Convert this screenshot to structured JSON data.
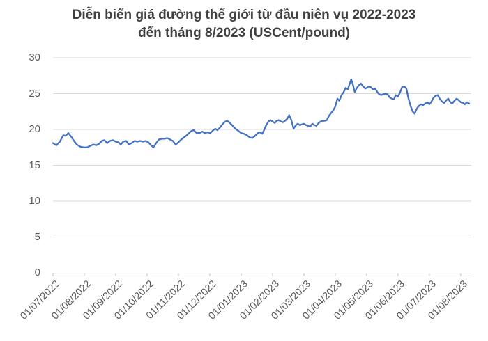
{
  "title": {
    "line1": "Diễn biến giá đường thế giới từ đầu niên vụ 2022-2023",
    "line2": "đến tháng 8/2023 (USCent/pound)"
  },
  "chart_data": {
    "type": "line",
    "title": "Diễn biến giá đường thế giới từ đầu niên vụ 2022-2023 đến tháng 8/2023 (USCent/pound)",
    "xlabel": "",
    "ylabel": "",
    "ylim": [
      0,
      30
    ],
    "yticks": [
      0,
      5,
      10,
      15,
      20,
      25,
      30
    ],
    "x_tick_labels": [
      "01/07/2022",
      "01/08/2022",
      "01/09/2022",
      "01/10/2022",
      "01/11/2022",
      "01/12/2022",
      "01/01/2023",
      "01/02/2023",
      "01/03/2023",
      "01/04/2023",
      "01/05/2023",
      "01/06/2023",
      "01/07/2023",
      "01/08/2023"
    ],
    "x_unit": "months since 01/07/2022",
    "x_range": [
      0,
      13.27
    ],
    "grid": "horizontal",
    "legend": "none",
    "colors": {
      "line": "#4472C4",
      "title": "#404040",
      "axis_labels": "#595959",
      "gridline": "#D9D9D9",
      "axis_line": "#BFBFBF"
    },
    "series": [
      {
        "points": [
          [
            0,
            18.1
          ],
          [
            0.11,
            17.8
          ],
          [
            0.22,
            18.3
          ],
          [
            0.33,
            19.2
          ],
          [
            0.4,
            19.1
          ],
          [
            0.49,
            19.5
          ],
          [
            0.58,
            19.0
          ],
          [
            0.67,
            18.4
          ],
          [
            0.76,
            17.9
          ],
          [
            0.87,
            17.6
          ],
          [
            0.98,
            17.5
          ],
          [
            1.09,
            17.5
          ],
          [
            1.18,
            17.7
          ],
          [
            1.29,
            17.9
          ],
          [
            1.38,
            17.8
          ],
          [
            1.47,
            18.0
          ],
          [
            1.56,
            18.4
          ],
          [
            1.64,
            18.5
          ],
          [
            1.73,
            18.1
          ],
          [
            1.82,
            18.4
          ],
          [
            1.91,
            18.5
          ],
          [
            2.0,
            18.3
          ],
          [
            2.09,
            18.2
          ],
          [
            2.16,
            17.9
          ],
          [
            2.24,
            18.3
          ],
          [
            2.33,
            18.4
          ],
          [
            2.42,
            17.9
          ],
          [
            2.51,
            18.1
          ],
          [
            2.6,
            18.4
          ],
          [
            2.69,
            18.3
          ],
          [
            2.78,
            18.4
          ],
          [
            2.87,
            18.3
          ],
          [
            2.96,
            18.4
          ],
          [
            3.04,
            18.2
          ],
          [
            3.13,
            17.8
          ],
          [
            3.2,
            17.5
          ],
          [
            3.29,
            18.1
          ],
          [
            3.38,
            18.6
          ],
          [
            3.47,
            18.7
          ],
          [
            3.56,
            18.7
          ],
          [
            3.64,
            18.8
          ],
          [
            3.73,
            18.6
          ],
          [
            3.82,
            18.4
          ],
          [
            3.91,
            17.9
          ],
          [
            4.0,
            18.2
          ],
          [
            4.09,
            18.6
          ],
          [
            4.18,
            18.9
          ],
          [
            4.27,
            19.2
          ],
          [
            4.36,
            19.6
          ],
          [
            4.42,
            19.8
          ],
          [
            4.49,
            19.9
          ],
          [
            4.58,
            19.5
          ],
          [
            4.67,
            19.5
          ],
          [
            4.76,
            19.7
          ],
          [
            4.84,
            19.5
          ],
          [
            4.93,
            19.6
          ],
          [
            5.02,
            19.5
          ],
          [
            5.11,
            19.9
          ],
          [
            5.18,
            20.1
          ],
          [
            5.24,
            19.9
          ],
          [
            5.33,
            20.3
          ],
          [
            5.42,
            20.8
          ],
          [
            5.49,
            21.1
          ],
          [
            5.56,
            21.2
          ],
          [
            5.64,
            20.9
          ],
          [
            5.73,
            20.5
          ],
          [
            5.82,
            20.1
          ],
          [
            5.91,
            19.8
          ],
          [
            6.0,
            19.5
          ],
          [
            6.09,
            19.4
          ],
          [
            6.18,
            19.2
          ],
          [
            6.27,
            18.9
          ],
          [
            6.36,
            18.8
          ],
          [
            6.44,
            19.1
          ],
          [
            6.53,
            19.5
          ],
          [
            6.6,
            19.6
          ],
          [
            6.67,
            19.4
          ],
          [
            6.73,
            19.9
          ],
          [
            6.8,
            20.6
          ],
          [
            6.87,
            21.1
          ],
          [
            6.93,
            21.3
          ],
          [
            7.0,
            21.1
          ],
          [
            7.07,
            20.9
          ],
          [
            7.13,
            21.2
          ],
          [
            7.2,
            21.3
          ],
          [
            7.27,
            21.1
          ],
          [
            7.33,
            21.0
          ],
          [
            7.4,
            21.2
          ],
          [
            7.47,
            21.5
          ],
          [
            7.53,
            22.0
          ],
          [
            7.6,
            21.3
          ],
          [
            7.67,
            20.1
          ],
          [
            7.73,
            20.5
          ],
          [
            7.8,
            20.8
          ],
          [
            7.87,
            20.6
          ],
          [
            7.93,
            20.7
          ],
          [
            8.0,
            20.8
          ],
          [
            8.07,
            20.6
          ],
          [
            8.13,
            20.5
          ],
          [
            8.2,
            20.4
          ],
          [
            8.27,
            20.8
          ],
          [
            8.33,
            20.6
          ],
          [
            8.4,
            20.5
          ],
          [
            8.47,
            20.9
          ],
          [
            8.53,
            21.1
          ],
          [
            8.6,
            21.2
          ],
          [
            8.67,
            21.2
          ],
          [
            8.73,
            21.3
          ],
          [
            8.8,
            21.9
          ],
          [
            8.87,
            22.3
          ],
          [
            8.93,
            22.6
          ],
          [
            9.0,
            23.2
          ],
          [
            9.07,
            24.3
          ],
          [
            9.13,
            24.0
          ],
          [
            9.2,
            24.8
          ],
          [
            9.27,
            25.2
          ],
          [
            9.33,
            25.8
          ],
          [
            9.4,
            25.6
          ],
          [
            9.47,
            26.5
          ],
          [
            9.51,
            27.0
          ],
          [
            9.56,
            26.3
          ],
          [
            9.62,
            25.2
          ],
          [
            9.69,
            25.8
          ],
          [
            9.76,
            26.2
          ],
          [
            9.82,
            26.4
          ],
          [
            9.89,
            26.0
          ],
          [
            9.96,
            25.7
          ],
          [
            10.0,
            25.8
          ],
          [
            10.07,
            26.0
          ],
          [
            10.13,
            25.9
          ],
          [
            10.2,
            25.6
          ],
          [
            10.27,
            25.7
          ],
          [
            10.33,
            25.3
          ],
          [
            10.4,
            24.9
          ],
          [
            10.47,
            24.8
          ],
          [
            10.53,
            24.9
          ],
          [
            10.6,
            25.0
          ],
          [
            10.67,
            24.9
          ],
          [
            10.73,
            24.5
          ],
          [
            10.8,
            24.3
          ],
          [
            10.87,
            24.2
          ],
          [
            10.93,
            24.8
          ],
          [
            11.0,
            24.6
          ],
          [
            11.07,
            25.2
          ],
          [
            11.13,
            25.9
          ],
          [
            11.2,
            26.0
          ],
          [
            11.27,
            25.7
          ],
          [
            11.33,
            24.4
          ],
          [
            11.4,
            23.3
          ],
          [
            11.47,
            22.5
          ],
          [
            11.53,
            22.2
          ],
          [
            11.6,
            22.9
          ],
          [
            11.67,
            23.3
          ],
          [
            11.73,
            23.5
          ],
          [
            11.8,
            23.4
          ],
          [
            11.87,
            23.6
          ],
          [
            11.93,
            23.8
          ],
          [
            12.0,
            23.5
          ],
          [
            12.07,
            23.9
          ],
          [
            12.13,
            24.4
          ],
          [
            12.2,
            24.7
          ],
          [
            12.27,
            24.8
          ],
          [
            12.33,
            24.3
          ],
          [
            12.4,
            23.9
          ],
          [
            12.47,
            23.7
          ],
          [
            12.53,
            24.0
          ],
          [
            12.6,
            24.3
          ],
          [
            12.67,
            23.8
          ],
          [
            12.73,
            23.6
          ],
          [
            12.8,
            24.0
          ],
          [
            12.87,
            24.3
          ],
          [
            12.93,
            24.1
          ],
          [
            13.0,
            23.8
          ],
          [
            13.07,
            23.7
          ],
          [
            13.13,
            23.5
          ],
          [
            13.2,
            23.8
          ],
          [
            13.27,
            23.6
          ]
        ]
      }
    ]
  }
}
